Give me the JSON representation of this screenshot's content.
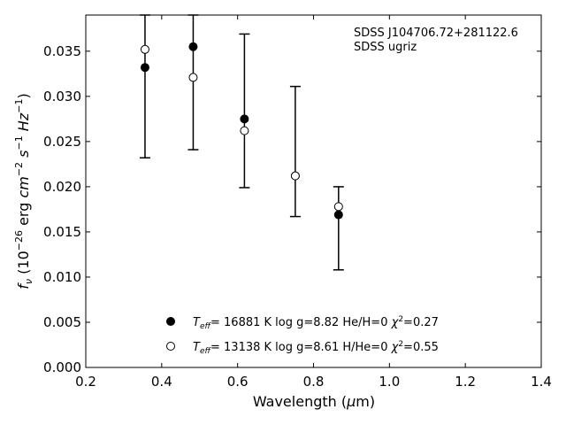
{
  "chart_data": {
    "type": "scatter",
    "xlabel": "Wavelength (μm)",
    "ylabel": "f_ν (10^-26 erg cm^-2 s^-1 Hz^-1)",
    "xlim": [
      0.2,
      1.4
    ],
    "ylim": [
      0.0,
      0.039
    ],
    "x_ticks": [
      "0.2",
      "0.4",
      "0.6",
      "0.8",
      "1.0",
      "1.2",
      "1.4"
    ],
    "y_ticks": [
      "0.000",
      "0.005",
      "0.010",
      "0.015",
      "0.020",
      "0.025",
      "0.030",
      "0.035"
    ],
    "grid": false,
    "annotations": [
      "SDSS J104706.72+281122.6",
      "SDSS ugriz"
    ],
    "observed_error_bars": [
      {
        "x": 0.356,
        "low": 0.0232,
        "high": 0.039
      },
      {
        "x": 0.483,
        "low": 0.0241,
        "high": 0.039
      },
      {
        "x": 0.618,
        "low": 0.0199,
        "high": 0.0369
      },
      {
        "x": 0.752,
        "low": 0.0167,
        "high": 0.0311
      },
      {
        "x": 0.866,
        "low": 0.0108,
        "high": 0.02
      }
    ],
    "series": [
      {
        "name": "Teff= 16881 K  log g=8.82  He/H=0  χ2=0.27",
        "marker": "filled-circle",
        "x": [
          0.356,
          0.483,
          0.618,
          0.752,
          0.866
        ],
        "y": [
          0.0332,
          0.0355,
          0.0275,
          0.0212,
          0.0169
        ]
      },
      {
        "name": "Teff= 13138 K  log g=8.61  H/He=0  χ2=0.55",
        "marker": "open-circle",
        "x": [
          0.356,
          0.483,
          0.618,
          0.752,
          0.866
        ],
        "y": [
          0.0352,
          0.0321,
          0.0262,
          0.0212,
          0.0178
        ]
      }
    ],
    "legend": {
      "placement": "lower-center",
      "entries": [
        {
          "teff": "16881",
          "logg": "8.82",
          "comp": "He/H=0",
          "chi2": "0.27"
        },
        {
          "teff": "13138",
          "logg": "8.61",
          "comp": "H/He=0",
          "chi2": "0.55"
        }
      ]
    },
    "colors": {
      "marker": "#000000",
      "open_fill": "#ffffff",
      "axes": "#000000"
    }
  }
}
